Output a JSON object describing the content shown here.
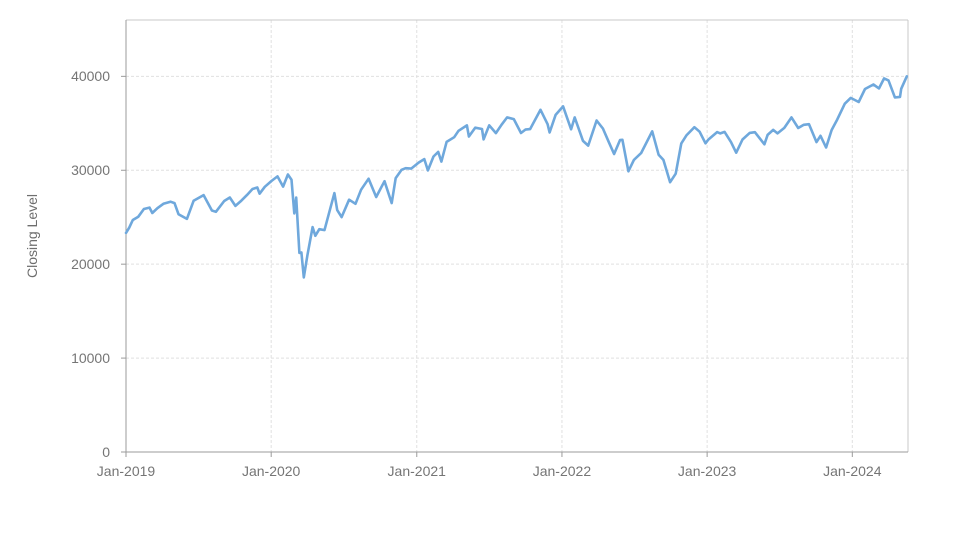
{
  "chart_data": {
    "type": "line",
    "title": "",
    "xlabel": "",
    "ylabel": "Closing Level",
    "legend": "none",
    "grid": true,
    "grid_style": "dashed",
    "xlim": [
      "2019-01-01",
      "2024-05-20"
    ],
    "ylim": [
      0,
      46000
    ],
    "x_ticks": [
      {
        "label": "Jan-2019",
        "date": "2019-01-01"
      },
      {
        "label": "Jan-2020",
        "date": "2020-01-01"
      },
      {
        "label": "Jan-2021",
        "date": "2021-01-01"
      },
      {
        "label": "Jan-2022",
        "date": "2022-01-01"
      },
      {
        "label": "Jan-2023",
        "date": "2023-01-01"
      },
      {
        "label": "Jan-2024",
        "date": "2024-01-01"
      }
    ],
    "y_ticks": [
      {
        "label": "0",
        "value": 0
      },
      {
        "label": "10000",
        "value": 10000
      },
      {
        "label": "20000",
        "value": 20000
      },
      {
        "label": "30000",
        "value": 30000
      },
      {
        "label": "40000",
        "value": 40000
      }
    ],
    "colors": {
      "line": "#6fa8dc",
      "grid": "#e0e0e0",
      "border": "#c9c9c9",
      "axis": "#9b9b9b",
      "tick_text": "#757575",
      "axis_label_text": "#6e6e6e",
      "background": "#ffffff"
    },
    "series": [
      {
        "name": "Closing Level",
        "color": "#6fa8dc",
        "points": [
          [
            "2019-01-01",
            23330
          ],
          [
            "2019-01-09",
            23880
          ],
          [
            "2019-01-18",
            24705
          ],
          [
            "2019-02-01",
            25060
          ],
          [
            "2019-02-15",
            25880
          ],
          [
            "2019-03-01",
            26025
          ],
          [
            "2019-03-08",
            25450
          ],
          [
            "2019-03-21",
            25960
          ],
          [
            "2019-04-05",
            26425
          ],
          [
            "2019-04-23",
            26655
          ],
          [
            "2019-05-03",
            26505
          ],
          [
            "2019-05-13",
            25325
          ],
          [
            "2019-06-03",
            24820
          ],
          [
            "2019-06-20",
            26750
          ],
          [
            "2019-07-15",
            27360
          ],
          [
            "2019-08-05",
            25720
          ],
          [
            "2019-08-15",
            25580
          ],
          [
            "2019-09-05",
            26730
          ],
          [
            "2019-09-19",
            27095
          ],
          [
            "2019-10-03",
            26200
          ],
          [
            "2019-10-18",
            26770
          ],
          [
            "2019-11-01",
            27350
          ],
          [
            "2019-11-15",
            28005
          ],
          [
            "2019-11-27",
            28160
          ],
          [
            "2019-12-03",
            27500
          ],
          [
            "2019-12-16",
            28240
          ],
          [
            "2020-01-02",
            28870
          ],
          [
            "2020-01-17",
            29350
          ],
          [
            "2020-01-31",
            28255
          ],
          [
            "2020-02-12",
            29550
          ],
          [
            "2020-02-21",
            28990
          ],
          [
            "2020-02-28",
            25410
          ],
          [
            "2020-03-04",
            27090
          ],
          [
            "2020-03-12",
            21200
          ],
          [
            "2020-03-17",
            21240
          ],
          [
            "2020-03-23",
            18590
          ],
          [
            "2020-04-01",
            20945
          ],
          [
            "2020-04-14",
            23950
          ],
          [
            "2020-04-21",
            23020
          ],
          [
            "2020-05-01",
            23725
          ],
          [
            "2020-05-14",
            23625
          ],
          [
            "2020-06-08",
            27570
          ],
          [
            "2020-06-15",
            25760
          ],
          [
            "2020-06-26",
            25015
          ],
          [
            "2020-07-15",
            26870
          ],
          [
            "2020-07-31",
            26430
          ],
          [
            "2020-08-14",
            27930
          ],
          [
            "2020-09-02",
            29100
          ],
          [
            "2020-09-21",
            27150
          ],
          [
            "2020-10-12",
            28840
          ],
          [
            "2020-10-30",
            26500
          ],
          [
            "2020-11-09",
            29160
          ],
          [
            "2020-11-24",
            30045
          ],
          [
            "2020-12-04",
            30220
          ],
          [
            "2020-12-18",
            30180
          ],
          [
            "2021-01-06",
            30830
          ],
          [
            "2021-01-20",
            31190
          ],
          [
            "2021-01-29",
            29985
          ],
          [
            "2021-02-12",
            31460
          ],
          [
            "2021-02-24",
            31960
          ],
          [
            "2021-03-04",
            30925
          ],
          [
            "2021-03-17",
            33015
          ],
          [
            "2021-04-05",
            33525
          ],
          [
            "2021-04-16",
            34200
          ],
          [
            "2021-05-07",
            34780
          ],
          [
            "2021-05-12",
            33590
          ],
          [
            "2021-05-28",
            34530
          ],
          [
            "2021-06-14",
            34395
          ],
          [
            "2021-06-18",
            33290
          ],
          [
            "2021-07-02",
            34785
          ],
          [
            "2021-07-19",
            33960
          ],
          [
            "2021-08-02",
            34840
          ],
          [
            "2021-08-16",
            35625
          ],
          [
            "2021-09-02",
            35445
          ],
          [
            "2021-09-20",
            33970
          ],
          [
            "2021-10-01",
            34325
          ],
          [
            "2021-10-13",
            34380
          ],
          [
            "2021-11-08",
            36435
          ],
          [
            "2021-11-26",
            34900
          ],
          [
            "2021-12-01",
            34020
          ],
          [
            "2021-12-16",
            35900
          ],
          [
            "2022-01-04",
            36800
          ],
          [
            "2022-01-24",
            34365
          ],
          [
            "2022-02-02",
            35630
          ],
          [
            "2022-02-23",
            33130
          ],
          [
            "2022-03-08",
            32630
          ],
          [
            "2022-03-29",
            35295
          ],
          [
            "2022-04-14",
            34450
          ],
          [
            "2022-04-29",
            32975
          ],
          [
            "2022-05-12",
            31730
          ],
          [
            "2022-05-27",
            33210
          ],
          [
            "2022-06-02",
            33245
          ],
          [
            "2022-06-17",
            29890
          ],
          [
            "2022-07-01",
            31100
          ],
          [
            "2022-07-19",
            31825
          ],
          [
            "2022-08-16",
            34150
          ],
          [
            "2022-09-01",
            31655
          ],
          [
            "2022-09-13",
            31105
          ],
          [
            "2022-09-30",
            28725
          ],
          [
            "2022-10-14",
            29635
          ],
          [
            "2022-10-28",
            32860
          ],
          [
            "2022-11-10",
            33715
          ],
          [
            "2022-11-30",
            34590
          ],
          [
            "2022-12-13",
            34110
          ],
          [
            "2022-12-28",
            32875
          ],
          [
            "2023-01-04",
            33270
          ],
          [
            "2023-01-26",
            34060
          ],
          [
            "2023-02-03",
            33925
          ],
          [
            "2023-02-14",
            34090
          ],
          [
            "2023-03-02",
            33000
          ],
          [
            "2023-03-15",
            31875
          ],
          [
            "2023-03-31",
            33275
          ],
          [
            "2023-04-18",
            33975
          ],
          [
            "2023-05-01",
            34050
          ],
          [
            "2023-05-25",
            32765
          ],
          [
            "2023-06-02",
            33765
          ],
          [
            "2023-06-16",
            34300
          ],
          [
            "2023-06-27",
            33930
          ],
          [
            "2023-07-14",
            34510
          ],
          [
            "2023-08-01",
            35630
          ],
          [
            "2023-08-18",
            34500
          ],
          [
            "2023-09-01",
            34840
          ],
          [
            "2023-09-14",
            34907
          ],
          [
            "2023-10-03",
            33000
          ],
          [
            "2023-10-13",
            33670
          ],
          [
            "2023-10-27",
            32420
          ],
          [
            "2023-11-10",
            34280
          ],
          [
            "2023-11-24",
            35390
          ],
          [
            "2023-12-13",
            37090
          ],
          [
            "2023-12-28",
            37710
          ],
          [
            "2024-01-17",
            37270
          ],
          [
            "2024-02-02",
            38655
          ],
          [
            "2024-02-23",
            39130
          ],
          [
            "2024-03-08",
            38720
          ],
          [
            "2024-03-21",
            39780
          ],
          [
            "2024-04-01",
            39570
          ],
          [
            "2024-04-17",
            37755
          ],
          [
            "2024-04-30",
            37815
          ],
          [
            "2024-05-03",
            38675
          ],
          [
            "2024-05-17",
            40000
          ]
        ]
      }
    ]
  }
}
